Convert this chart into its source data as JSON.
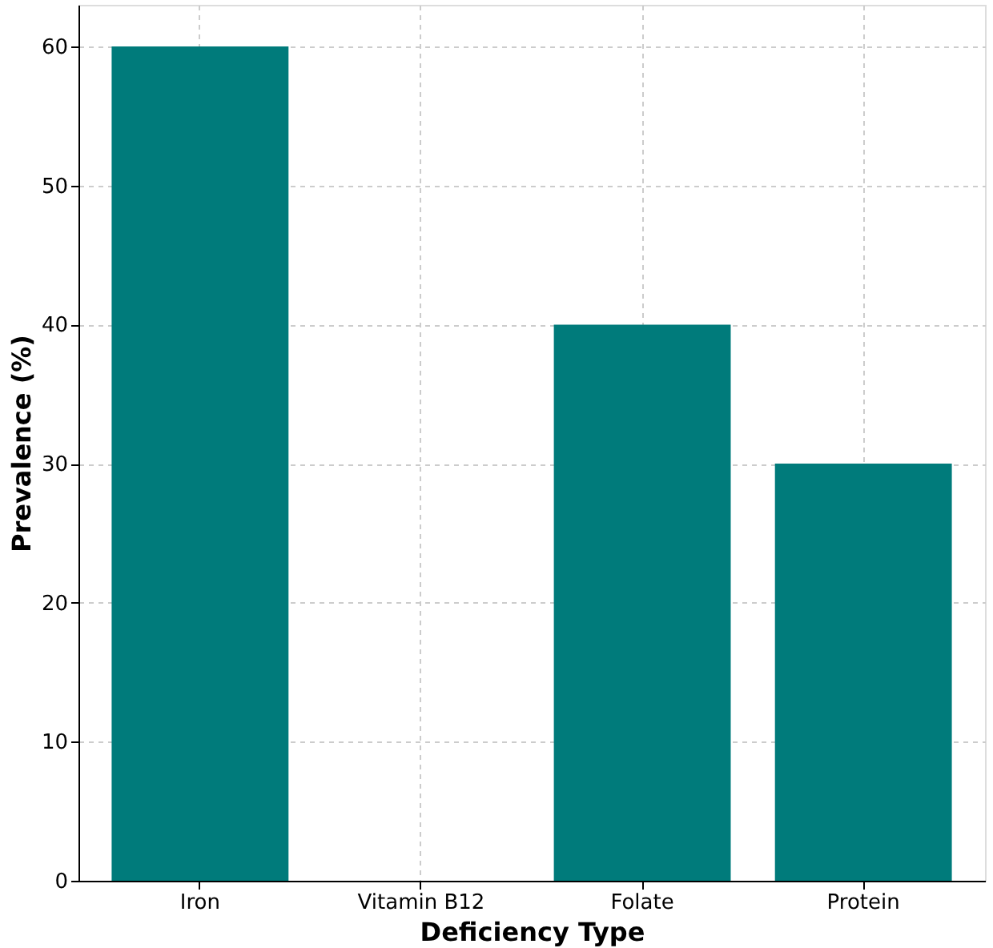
{
  "chart_data": {
    "type": "bar",
    "xlabel": "Deficiency Type",
    "ylabel": "Prevalence (%)",
    "categories": [
      "Iron",
      "Vitamin B12",
      "Folate",
      "Protein"
    ],
    "values": [
      60,
      0,
      40,
      30
    ],
    "color": "#007b7b",
    "ylim": [
      0,
      63
    ],
    "yticks": [
      0,
      10,
      20,
      30,
      40,
      50,
      60
    ],
    "grid": true
  }
}
